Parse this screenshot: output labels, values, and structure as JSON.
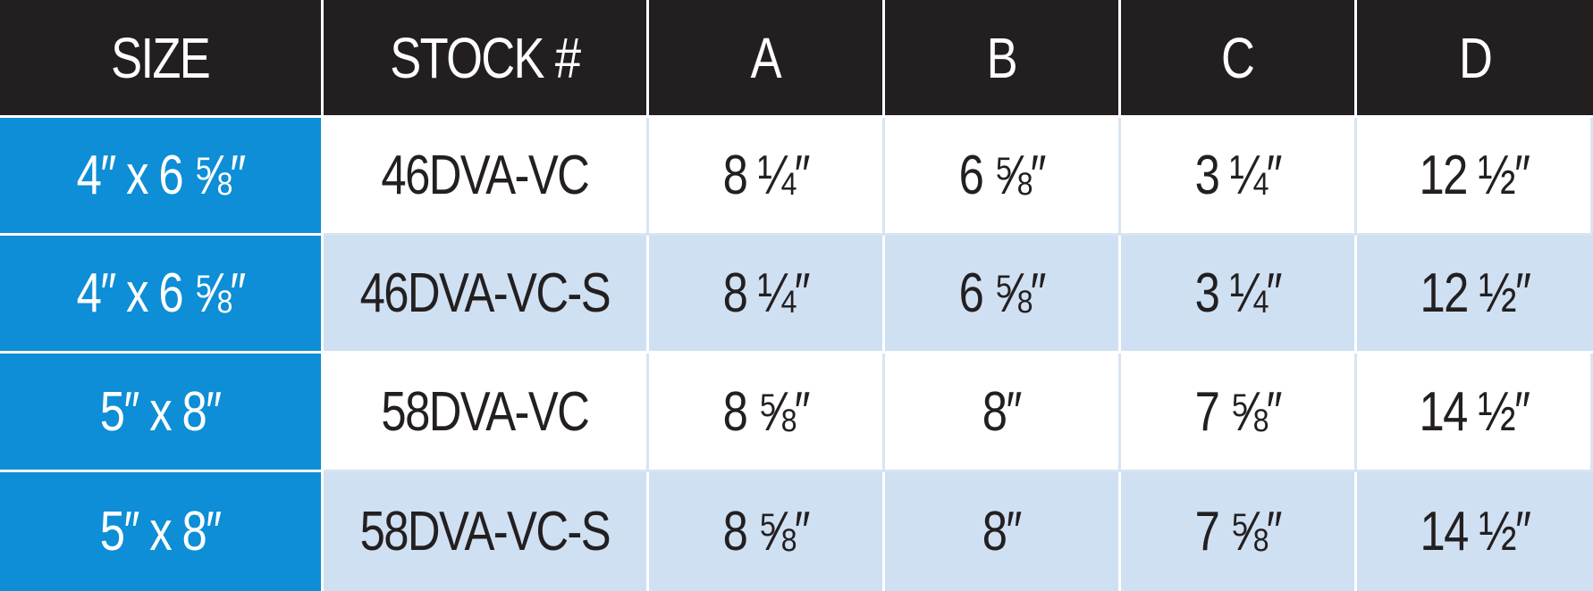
{
  "table": {
    "headers": [
      "SIZE",
      "STOCK #",
      "A",
      "B",
      "C",
      "D"
    ],
    "rows": [
      [
        "4″ x 6 ⅝″",
        "46DVA-VC",
        "8 ¼″",
        "6 ⅝″",
        "3 ¼″",
        "12 ½″"
      ],
      [
        "4″ x 6 ⅝″",
        "46DVA-VC-S",
        "8 ¼″",
        "6 ⅝″",
        "3 ¼″",
        "12 ½″"
      ],
      [
        "5″ x 8″",
        "58DVA-VC",
        "8 ⅝″",
        "8″",
        "7 ⅝″",
        "14 ½″"
      ],
      [
        "5″ x 8″",
        "58DVA-VC-S",
        "8 ⅝″",
        "8″",
        "7 ⅝″",
        "14 ½″"
      ]
    ]
  },
  "colors": {
    "header_bg": "#231f20",
    "size_column_bg": "#0d8ed6",
    "alt_row_bg": "#cfe0f2",
    "text_dark": "#231f20"
  }
}
